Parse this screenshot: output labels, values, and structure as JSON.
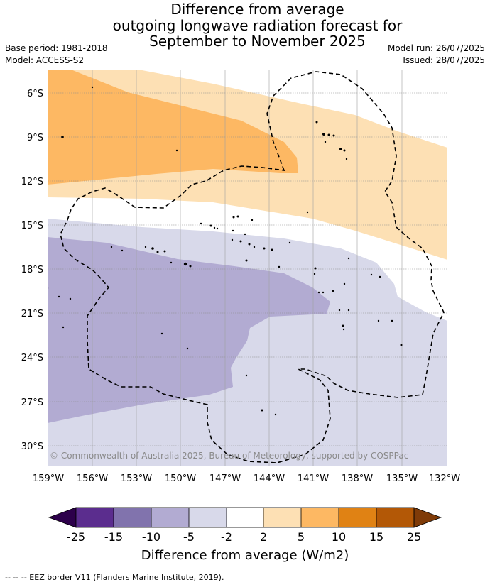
{
  "title_lines": [
    "Difference from average",
    "outgoing longwave radiation forecast for",
    "September to November 2025"
  ],
  "base_period": "Base period: 1981-2018",
  "model": "Model: ACCESS-S2",
  "model_run": "Model run: 26/07/2025",
  "issued": "Issued: 28/07/2025",
  "watermark": "© Commonwealth of Australia 2025, Bureau of Meteorology, supported by COSPPac",
  "lat_labels": [
    "6°S",
    "9°S",
    "12°S",
    "15°S",
    "18°S",
    "21°S",
    "24°S",
    "27°S",
    "30°S"
  ],
  "lon_labels": [
    "159°W",
    "156°W",
    "153°W",
    "150°W",
    "147°W",
    "144°W",
    "141°W",
    "138°W",
    "135°W",
    "132°W"
  ],
  "colorbar": {
    "label": "Difference from average (W/m2)",
    "ticks": [
      "-25",
      "-15",
      "-10",
      "-5",
      "-2",
      "2",
      "5",
      "10",
      "15",
      "25"
    ],
    "colors": [
      "#5b2d8e",
      "#8173ad",
      "#b2abd2",
      "#d8d9ea",
      "#ffffff",
      "#fde0b4",
      "#fdb863",
      "#e08214",
      "#b35806"
    ],
    "under_color": "#2d004b",
    "over_color": "#7f3b08"
  },
  "eez_credit": "--  --  -- EEZ border V11 (Flanders Marine Institute, 2019).",
  "legend_colors": {
    "light_orange": "#fde0b4",
    "orange": "#fdb863",
    "light_purple": "#d8d9ea",
    "purple": "#b2abd2"
  }
}
